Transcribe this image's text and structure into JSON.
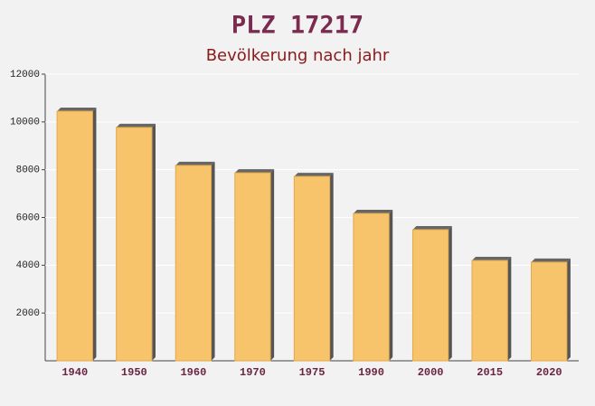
{
  "chart_data": {
    "type": "bar",
    "title": "PLZ 17217",
    "subtitle": "Bevölkerung nach jahr",
    "categories": [
      "1940",
      "1950",
      "1960",
      "1970",
      "1975",
      "1990",
      "2000",
      "2015",
      "2020"
    ],
    "values": [
      10450,
      9770,
      8180,
      7870,
      7720,
      6170,
      5490,
      4200,
      4130
    ],
    "color": "#f7c46c",
    "ylim": [
      0,
      12000
    ],
    "yticks": [
      2000,
      4000,
      6000,
      8000,
      10000,
      12000
    ],
    "grid": true
  }
}
